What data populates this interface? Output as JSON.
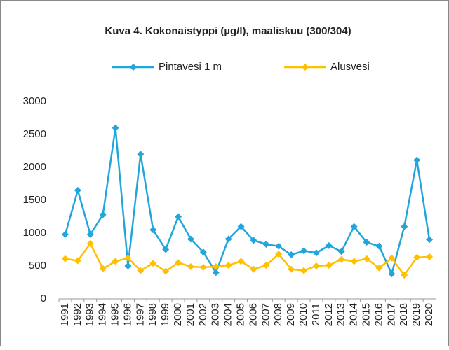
{
  "chart_data": {
    "type": "line",
    "title": "Kuva 4. Kokonaistyppi (µg/l), maaliskuu (300/304)",
    "categories": [
      "1991",
      "1992",
      "1993",
      "1994",
      "1995",
      "1996",
      "1997",
      "1998",
      "1999",
      "2000",
      "2001",
      "2002",
      "2003",
      "2004",
      "2005",
      "2006",
      "2007",
      "2008",
      "2009",
      "2010",
      "2011",
      "2012",
      "2013",
      "2014",
      "2015",
      "2016",
      "2017",
      "2018",
      "2019",
      "2020"
    ],
    "series": [
      {
        "name": "Pintavesi 1 m",
        "color": "#21a6dc",
        "values": [
          980,
          1650,
          980,
          1280,
          2600,
          500,
          2200,
          1050,
          750,
          1250,
          910,
          710,
          400,
          910,
          1100,
          890,
          830,
          800,
          670,
          730,
          700,
          810,
          720,
          1100,
          860,
          800,
          380,
          1100,
          2110,
          900
        ]
      },
      {
        "name": "Alusvesi",
        "color": "#ffc000",
        "values": [
          610,
          580,
          840,
          460,
          570,
          620,
          430,
          540,
          420,
          550,
          490,
          480,
          490,
          510,
          570,
          450,
          510,
          680,
          450,
          430,
          500,
          510,
          600,
          570,
          610,
          470,
          620,
          360,
          630,
          640
        ]
      }
    ],
    "ylim": [
      0,
      3000
    ],
    "yticks": [
      0,
      500,
      1000,
      1500,
      2000,
      2500,
      3000
    ],
    "grid": false,
    "legend": "top"
  }
}
